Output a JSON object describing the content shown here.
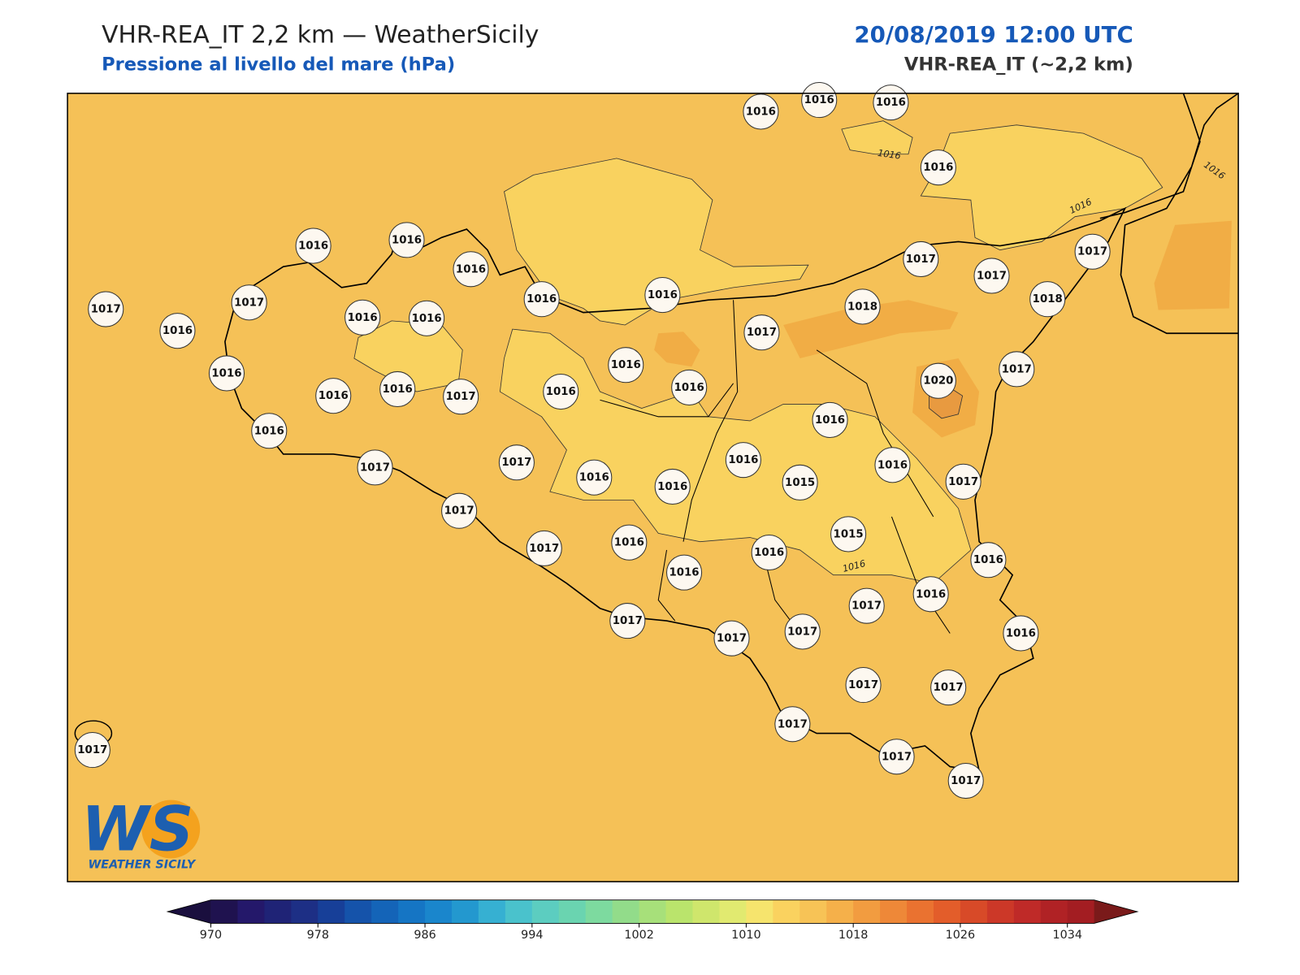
{
  "header": {
    "title": "VHR-REA_IT 2,2 km — WeatherSicily",
    "subtitle": "Pressione al livello del mare (hPa)",
    "datetime": "20/08/2019 12:00 UTC",
    "model": "VHR-REA_IT (~2,2 km)"
  },
  "map": {
    "stations": [
      1016,
      1016,
      1016,
      1016,
      1016,
      1016,
      1016,
      1017,
      1017,
      1016,
      1016,
      1016,
      1016,
      1016,
      1017,
      1017,
      1017,
      1018,
      1018,
      1017,
      1016,
      1016,
      1016,
      1017,
      1016,
      1016,
      1016,
      1020,
      1017,
      1016,
      1016,
      1017,
      1017,
      1016,
      1016,
      1016,
      1015,
      1016,
      1017,
      1017,
      1017,
      1016,
      1016,
      1016,
      1015,
      1016,
      1016,
      1017,
      1017,
      1017,
      1017,
      1016,
      1017,
      1017,
      1017,
      1017,
      1017,
      1017
    ],
    "contour_labels": [
      1016,
      1016,
      1016,
      1016
    ],
    "fill_color": "#f5c157",
    "light_color": "#f9d25f",
    "dark_color": "#f1ad45"
  },
  "logo": {
    "initials": "WS",
    "text": "WEATHER SICILY"
  },
  "colorbar": {
    "xlim": [
      970,
      1036
    ],
    "ticks": [
      970,
      978,
      986,
      994,
      1002,
      1010,
      1018,
      1026,
      1034
    ],
    "colors": [
      "#1f124f",
      "#24186a",
      "#1f2376",
      "#1d2f85",
      "#173f98",
      "#1553aa",
      "#1464b8",
      "#1575c4",
      "#1a86cc",
      "#2398cf",
      "#36b0d2",
      "#4ac2cc",
      "#5ccdc0",
      "#6ad4b0",
      "#7dda9f",
      "#92dc8a",
      "#a7e07a",
      "#bae46c",
      "#cfe66c",
      "#e1ea70",
      "#f6e46d",
      "#fad25f",
      "#f7c356",
      "#f5b04a",
      "#f29c40",
      "#ee8838",
      "#ea7230",
      "#e35d2a",
      "#d84a28",
      "#cc3828",
      "#bf2a28",
      "#b02225",
      "#a31d22"
    ],
    "under_color": "#1a0f3e",
    "over_color": "#7a1a1a"
  }
}
